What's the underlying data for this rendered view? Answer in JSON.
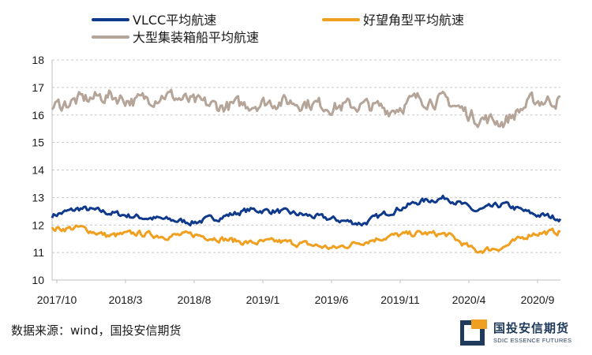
{
  "chart_data": {
    "type": "line",
    "title": "",
    "xlabel": "",
    "ylabel": "",
    "ylim": [
      10,
      18
    ],
    "yticks": [
      "10",
      "11",
      "12",
      "13",
      "14",
      "15",
      "16",
      "17",
      "18"
    ],
    "xticks": [
      "2017/10",
      "2018/3",
      "2018/8",
      "2019/1",
      "2019/6",
      "2019/11",
      "2020/4",
      "2020/9"
    ],
    "grid": "horizontal-dashed",
    "x": [
      "2017/10",
      "2017/12",
      "2018/2",
      "2018/4",
      "2018/6",
      "2018/8",
      "2018/10",
      "2018/12",
      "2019/2",
      "2019/4",
      "2019/6",
      "2019/8",
      "2019/10",
      "2019/12",
      "2020/2",
      "2020/4",
      "2020/6",
      "2020/8",
      "2020/10"
    ],
    "series": [
      {
        "name": "VLCC平均航速",
        "color": "#0f3a8c",
        "values": [
          12.35,
          12.6,
          12.45,
          12.3,
          12.2,
          12.1,
          12.3,
          12.55,
          12.5,
          12.35,
          12.2,
          12.05,
          12.5,
          12.85,
          13.0,
          12.5,
          12.75,
          12.4,
          12.25
        ]
      },
      {
        "name": "好望角型平均航速",
        "color": "#f0a020",
        "values": [
          11.85,
          11.9,
          11.6,
          11.7,
          11.6,
          11.65,
          11.5,
          11.35,
          11.4,
          11.3,
          11.15,
          11.4,
          11.6,
          11.7,
          11.65,
          11.05,
          11.2,
          11.7,
          11.75
        ]
      },
      {
        "name": "大型集装箱船平均航速",
        "color": "#b5a498",
        "values": [
          16.3,
          16.55,
          16.7,
          16.5,
          16.75,
          16.45,
          16.3,
          16.4,
          16.5,
          16.45,
          16.3,
          16.35,
          16.2,
          16.6,
          16.5,
          15.9,
          15.75,
          16.5,
          16.55
        ]
      }
    ]
  },
  "source": "数据来源：wind，国投安信期货",
  "logo": {
    "name_cn": "国投安信期货",
    "name_en": "SDIC ESSENCE FUTURES",
    "primary_color": "#1f3a5a",
    "accent_color": "#f0a020"
  }
}
